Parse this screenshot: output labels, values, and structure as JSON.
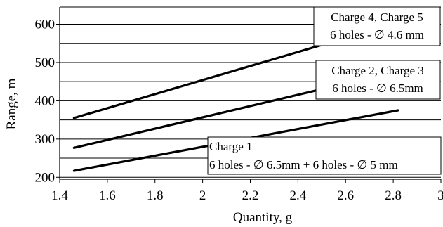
{
  "chart_data": {
    "type": "line",
    "xlabel": "Quantity, g",
    "ylabel": "Range, m",
    "xlim": [
      1.4,
      3.0
    ],
    "ylim": [
      195,
      645
    ],
    "x_ticks": [
      "1.4",
      "1.6",
      "1.8",
      "2",
      "2.2",
      "2.4",
      "2.6",
      "2.8",
      "3"
    ],
    "y_ticks": [
      "200",
      "300",
      "400",
      "500",
      "600"
    ],
    "grid": {
      "horizontal": true,
      "vertical": false,
      "y_values": [
        200,
        250,
        300,
        350,
        400,
        450,
        500,
        550,
        600
      ]
    },
    "line_color": "#000000",
    "series": [
      {
        "name": "Charge 4, Charge 5 / 6 holes - ∅ 4.6 mm",
        "x": [
          1.46,
          2.85
        ],
        "y": [
          355,
          610
        ]
      },
      {
        "name": "Charge 2, Charge 3 / 6 holes - ∅ 6.5mm",
        "x": [
          1.46,
          2.87
        ],
        "y": [
          277,
          485
        ]
      },
      {
        "name": "Charge 1 / 6 holes - ∅ 6.5mm + 6 holes - ∅ 5 mm",
        "x": [
          1.46,
          2.82
        ],
        "y": [
          217,
          375
        ]
      }
    ],
    "annotations": [
      {
        "line1": "Charge 4, Charge 5",
        "line2": "6 holes - ∅ 4.6 mm"
      },
      {
        "line1": "Charge 2, Charge 3",
        "line2": "6 holes - ∅ 6.5mm"
      },
      {
        "line1": "Charge 1",
        "line2": "6 holes - ∅ 6.5mm + 6 holes - ∅ 5 mm"
      }
    ]
  }
}
